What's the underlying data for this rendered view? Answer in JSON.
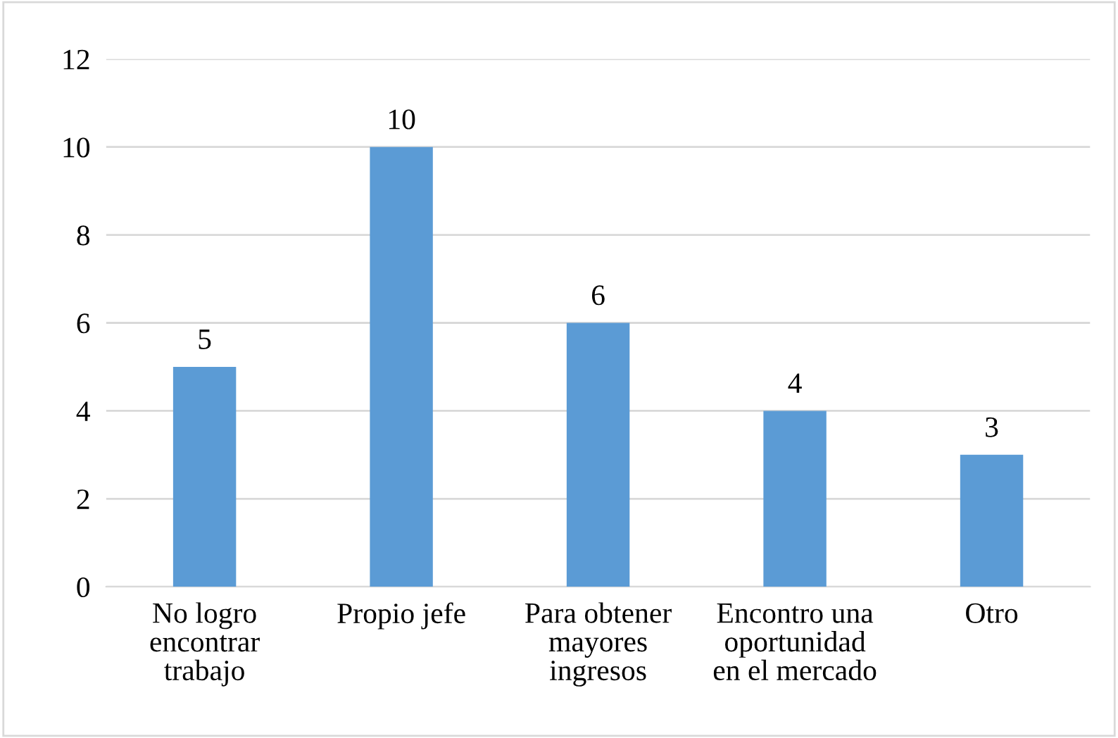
{
  "chart_data": {
    "type": "bar",
    "categories": [
      "No logro\nencontrar\ntrabajo",
      "Propio jefe",
      "Para obtener\nmayores\ningresos",
      "Encontro una\noportunidad\nen el mercado",
      "Otro"
    ],
    "values": [
      5,
      10,
      6,
      4,
      3
    ],
    "color": "#5b9bd5",
    "ylim": [
      0,
      12
    ],
    "yticks": [
      0,
      2,
      4,
      6,
      8,
      10,
      12
    ],
    "grid": "y",
    "data_labels": true,
    "legend": false
  }
}
